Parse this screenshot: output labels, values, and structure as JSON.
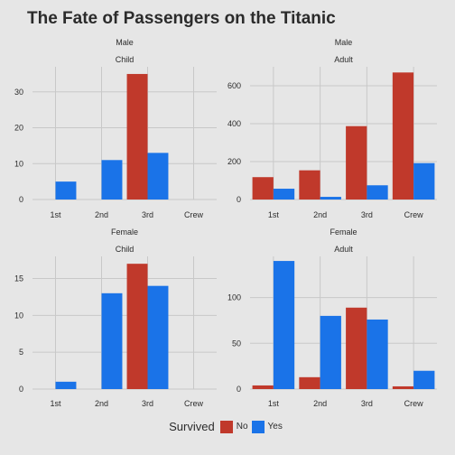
{
  "title": "The Fate of Passengers on the Titanic",
  "colors": {
    "No": "#c0392b",
    "Yes": "#1a73e8",
    "grid": "#c8c8c8",
    "panel": "#e6e6e6",
    "text": "#2b2b2b"
  },
  "chart_data": [
    {
      "type": "bar",
      "strip1": "Male",
      "strip2": "Child",
      "categories": [
        "1st",
        "2nd",
        "3rd",
        "Crew"
      ],
      "series": [
        {
          "name": "No",
          "values": [
            0,
            0,
            35,
            0
          ]
        },
        {
          "name": "Yes",
          "values": [
            5,
            11,
            13,
            0
          ]
        }
      ],
      "ylim": [
        0,
        37
      ],
      "yticks": [
        0,
        10,
        20,
        30
      ]
    },
    {
      "type": "bar",
      "strip1": "Male",
      "strip2": "Adult",
      "categories": [
        "1st",
        "2nd",
        "3rd",
        "Crew"
      ],
      "series": [
        {
          "name": "No",
          "values": [
            118,
            154,
            387,
            670
          ]
        },
        {
          "name": "Yes",
          "values": [
            57,
            14,
            75,
            192
          ]
        }
      ],
      "ylim": [
        0,
        700
      ],
      "yticks": [
        0,
        200,
        400,
        600
      ]
    },
    {
      "type": "bar",
      "strip1": "Female",
      "strip2": "Child",
      "categories": [
        "1st",
        "2nd",
        "3rd",
        "Crew"
      ],
      "series": [
        {
          "name": "No",
          "values": [
            0,
            0,
            17,
            0
          ]
        },
        {
          "name": "Yes",
          "values": [
            1,
            13,
            14,
            0
          ]
        }
      ],
      "ylim": [
        0,
        18
      ],
      "yticks": [
        0,
        5,
        10,
        15
      ]
    },
    {
      "type": "bar",
      "strip1": "Female",
      "strip2": "Adult",
      "categories": [
        "1st",
        "2nd",
        "3rd",
        "Crew"
      ],
      "series": [
        {
          "name": "No",
          "values": [
            4,
            13,
            89,
            3
          ]
        },
        {
          "name": "Yes",
          "values": [
            140,
            80,
            76,
            20
          ]
        }
      ],
      "ylim": [
        0,
        145
      ],
      "yticks": [
        0,
        50,
        100
      ]
    }
  ],
  "legend": {
    "title": "Survived",
    "items": [
      "No",
      "Yes"
    ]
  }
}
